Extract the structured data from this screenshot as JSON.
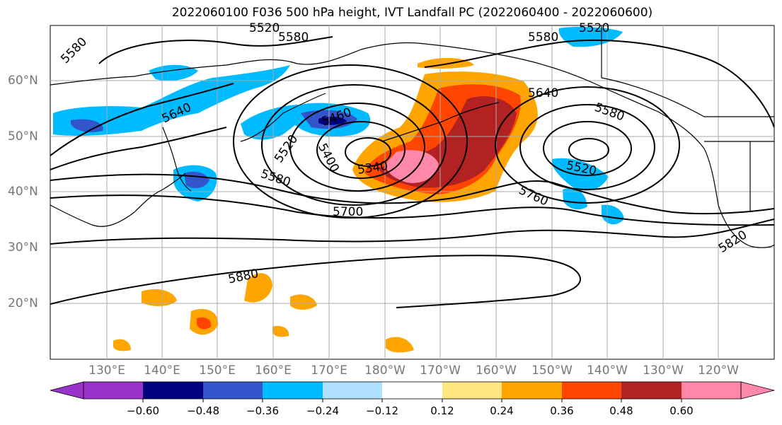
{
  "title": "2022060100 F036 500 hPa height, IVT Landfall PC (2022060400 - 2022060600)",
  "lon_labels": [
    "130°E",
    "140°E",
    "150°E",
    "160°E",
    "170°E",
    "180°W",
    "170°W",
    "160°W",
    "150°W",
    "140°W",
    "130°W",
    "120°W"
  ],
  "lat_labels": [
    "60°N",
    "50°N",
    "40°N",
    "30°N",
    "20°N"
  ],
  "contour_labels": [
    "5580",
    "5520",
    "5580",
    "5520",
    "5640",
    "5460",
    "5520",
    "5400",
    "5340",
    "5580",
    "5700",
    "5880",
    "5640",
    "5580",
    "5520",
    "5760",
    "5820"
  ],
  "colorbar": {
    "ticks": [
      "−0.60",
      "−0.48",
      "−0.36",
      "−0.24",
      "−0.12",
      "0.12",
      "0.24",
      "0.36",
      "0.48",
      "0.60"
    ],
    "colors": [
      "#9933cc",
      "#000080",
      "#3355cc",
      "#00bbff",
      "#b0e2ff",
      "#ffffff",
      "#ffe680",
      "#ffa500",
      "#ff4500",
      "#b22222",
      "#ff88aa"
    ]
  }
}
